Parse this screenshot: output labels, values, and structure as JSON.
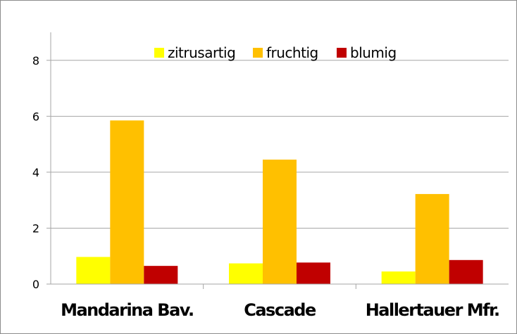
{
  "chart_data": {
    "type": "bar",
    "categories": [
      "Mandarina Bav.",
      "Cascade",
      "Hallertauer Mfr."
    ],
    "series": [
      {
        "name": "zitrusartig",
        "color": "#ffff00",
        "values": [
          0.97,
          0.74,
          0.45
        ]
      },
      {
        "name": "fruchtig",
        "color": "#ffc000",
        "values": [
          5.85,
          4.45,
          3.22
        ]
      },
      {
        "name": "blumig",
        "color": "#c00000",
        "values": [
          0.65,
          0.77,
          0.86
        ]
      }
    ],
    "ylim": [
      0,
      9
    ],
    "yticks": [
      0,
      2,
      4,
      6,
      8
    ],
    "grid": true,
    "legend": "top-center"
  }
}
